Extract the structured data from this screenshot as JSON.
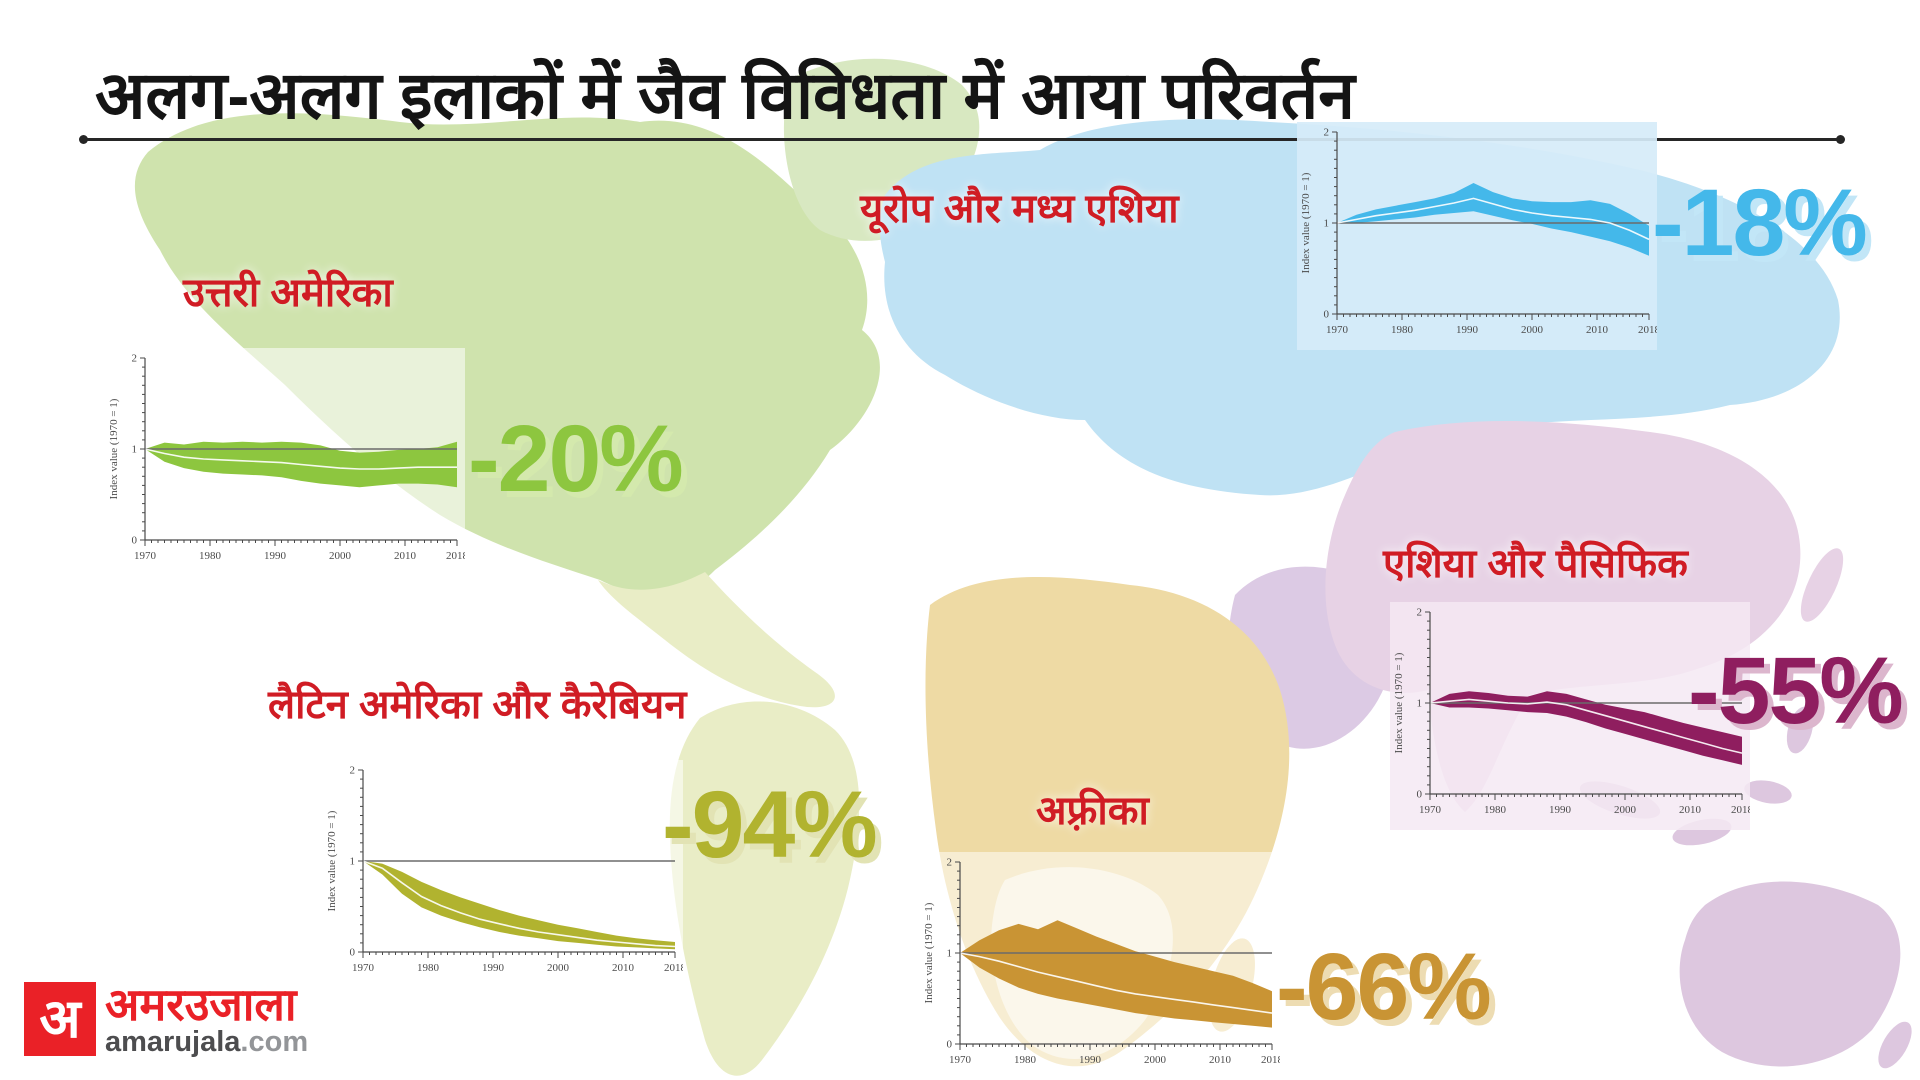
{
  "title": "अलग-अलग इलाकों में जैव विविधता में आया परिवर्तन",
  "colors": {
    "title": "#141414",
    "region_label": "#d01c24",
    "rule": "#262626",
    "brand_red": "#ea2127"
  },
  "map": {
    "ocean": "#ffffff",
    "north_america": "#cfe3ad",
    "greenland": "#d8e8c1",
    "latin_america": "#e9edc6",
    "europe_central_asia": "#bfe2f4",
    "africa": "#eedaa4",
    "africa_south": "#f7efd7",
    "middle_east": "#dccae4",
    "asia": "#e7d2e5",
    "australia_oceania": "#ddc7df"
  },
  "logo": {
    "monogram": "अ",
    "name_hindi": "अमरउजाला",
    "domain_bold": "amarujala",
    "domain_suffix": ".com"
  },
  "chart_data": [
    {
      "id": "north-america",
      "region_label": "उत्तरी अमेरिका",
      "percent_label": "-20%",
      "change_percent": -20,
      "type": "area",
      "ylabel": "Index value (1970 = 1)",
      "xlim": [
        1970,
        2018
      ],
      "ylim": [
        0,
        2
      ],
      "x_ticks": [
        1970,
        1980,
        1990,
        2000,
        2010,
        2018
      ],
      "y_ticks": [
        0,
        1,
        2
      ],
      "x": [
        1970,
        1973,
        1976,
        1979,
        1982,
        1985,
        1988,
        1991,
        1994,
        1997,
        2000,
        2003,
        2006,
        2009,
        2012,
        2015,
        2018
      ],
      "series": [
        {
          "name": "upper bound",
          "values": [
            1.0,
            1.07,
            1.05,
            1.08,
            1.07,
            1.08,
            1.07,
            1.08,
            1.07,
            1.04,
            0.98,
            0.96,
            0.97,
            0.99,
            1.0,
            1.02,
            1.08
          ]
        },
        {
          "name": "central estimate",
          "values": [
            1.0,
            0.95,
            0.91,
            0.89,
            0.88,
            0.87,
            0.86,
            0.85,
            0.83,
            0.81,
            0.79,
            0.78,
            0.78,
            0.79,
            0.8,
            0.8,
            0.8
          ]
        },
        {
          "name": "lower bound",
          "values": [
            1.0,
            0.86,
            0.79,
            0.75,
            0.73,
            0.72,
            0.71,
            0.69,
            0.65,
            0.62,
            0.6,
            0.58,
            0.6,
            0.62,
            0.62,
            0.61,
            0.58
          ]
        }
      ],
      "band_color": "#8dc63f",
      "accent_color": "#8dc63f",
      "shadow_color": "#d4e9ad",
      "panel_color": "rgba(255,255,255,0.55)"
    },
    {
      "id": "europe-central-asia",
      "region_label": "यूरोप और मध्य एशिया",
      "percent_label": "-18%",
      "change_percent": -18,
      "type": "area",
      "ylabel": "Index value (1970 = 1)",
      "xlim": [
        1970,
        2018
      ],
      "ylim": [
        0,
        2
      ],
      "x_ticks": [
        1970,
        1980,
        1990,
        2000,
        2010,
        2018
      ],
      "y_ticks": [
        0,
        1,
        2
      ],
      "x": [
        1970,
        1973,
        1976,
        1979,
        1982,
        1985,
        1988,
        1991,
        1994,
        1997,
        2000,
        2003,
        2006,
        2009,
        2012,
        2015,
        2018
      ],
      "series": [
        {
          "name": "upper bound",
          "values": [
            1.0,
            1.09,
            1.15,
            1.19,
            1.23,
            1.27,
            1.33,
            1.44,
            1.34,
            1.27,
            1.24,
            1.23,
            1.23,
            1.25,
            1.21,
            1.1,
            0.97
          ]
        },
        {
          "name": "central estimate",
          "values": [
            1.0,
            1.04,
            1.08,
            1.11,
            1.14,
            1.18,
            1.22,
            1.27,
            1.21,
            1.15,
            1.11,
            1.08,
            1.06,
            1.04,
            1.0,
            0.92,
            0.82
          ]
        },
        {
          "name": "lower bound",
          "values": [
            1.0,
            1.0,
            1.02,
            1.04,
            1.06,
            1.09,
            1.11,
            1.13,
            1.08,
            1.03,
            0.99,
            0.94,
            0.9,
            0.85,
            0.8,
            0.73,
            0.64
          ]
        }
      ],
      "band_color": "#44b8ea",
      "accent_color": "#44b8ea",
      "shadow_color": "#c2e6f7",
      "panel_color": "rgba(214,236,249,0.92)"
    },
    {
      "id": "latin-america-caribbean",
      "region_label": "लैटिन अमेरिका और कैरेबियन",
      "percent_label": "-94%",
      "change_percent": -94,
      "type": "area",
      "ylabel": "Index value (1970 = 1)",
      "xlim": [
        1970,
        2018
      ],
      "ylim": [
        0,
        2
      ],
      "x_ticks": [
        1970,
        1980,
        1990,
        2000,
        2010,
        2018
      ],
      "y_ticks": [
        0,
        1,
        2
      ],
      "x": [
        1970,
        1973,
        1976,
        1979,
        1982,
        1985,
        1988,
        1991,
        1994,
        1997,
        2000,
        2003,
        2006,
        2009,
        2012,
        2015,
        2018
      ],
      "series": [
        {
          "name": "upper bound",
          "values": [
            1.0,
            0.97,
            0.88,
            0.77,
            0.68,
            0.6,
            0.53,
            0.46,
            0.4,
            0.35,
            0.3,
            0.26,
            0.22,
            0.18,
            0.15,
            0.13,
            0.11
          ]
        },
        {
          "name": "central estimate",
          "values": [
            1.0,
            0.92,
            0.76,
            0.61,
            0.51,
            0.43,
            0.36,
            0.31,
            0.26,
            0.22,
            0.19,
            0.16,
            0.13,
            0.11,
            0.09,
            0.07,
            0.06
          ]
        },
        {
          "name": "lower bound",
          "values": [
            1.0,
            0.85,
            0.64,
            0.49,
            0.4,
            0.33,
            0.27,
            0.22,
            0.18,
            0.15,
            0.12,
            0.1,
            0.08,
            0.06,
            0.05,
            0.04,
            0.03
          ]
        }
      ],
      "band_color": "#b1b32f",
      "accent_color": "#b1b32f",
      "shadow_color": "#e2e3b4",
      "panel_color": "rgba(255,255,255,0.55)"
    },
    {
      "id": "africa",
      "region_label": "अफ़्रीका",
      "percent_label": "-66%",
      "change_percent": -66,
      "type": "area",
      "ylabel": "Index value (1970 = 1)",
      "xlim": [
        1970,
        2018
      ],
      "ylim": [
        0,
        2
      ],
      "x_ticks": [
        1970,
        1980,
        1990,
        2000,
        2010,
        2018
      ],
      "y_ticks": [
        0,
        1,
        2
      ],
      "x": [
        1970,
        1973,
        1976,
        1979,
        1982,
        1985,
        1988,
        1991,
        1994,
        1997,
        2000,
        2003,
        2006,
        2009,
        2012,
        2015,
        2018
      ],
      "series": [
        {
          "name": "upper bound",
          "values": [
            1.0,
            1.14,
            1.25,
            1.32,
            1.26,
            1.36,
            1.27,
            1.18,
            1.1,
            1.02,
            0.96,
            0.9,
            0.85,
            0.8,
            0.75,
            0.67,
            0.58
          ]
        },
        {
          "name": "central estimate",
          "values": [
            1.0,
            0.96,
            0.91,
            0.85,
            0.79,
            0.74,
            0.69,
            0.64,
            0.59,
            0.55,
            0.52,
            0.49,
            0.46,
            0.43,
            0.4,
            0.37,
            0.34
          ]
        },
        {
          "name": "lower bound",
          "values": [
            1.0,
            0.84,
            0.72,
            0.62,
            0.55,
            0.5,
            0.46,
            0.42,
            0.38,
            0.34,
            0.31,
            0.28,
            0.26,
            0.24,
            0.22,
            0.2,
            0.18
          ]
        }
      ],
      "band_color": "#c99434",
      "accent_color": "#c99434",
      "shadow_color": "#eddcb2",
      "panel_color": "rgba(255,255,255,0.5)"
    },
    {
      "id": "asia-pacific",
      "region_label": "एशिया और पैसिफिक",
      "percent_label": "-55%",
      "change_percent": -55,
      "type": "area",
      "ylabel": "Index value (1970 = 1)",
      "xlim": [
        1970,
        2018
      ],
      "ylim": [
        0,
        2
      ],
      "x_ticks": [
        1970,
        1980,
        1990,
        2000,
        2010,
        2018
      ],
      "y_ticks": [
        0,
        1,
        2
      ],
      "x": [
        1970,
        1973,
        1976,
        1979,
        1982,
        1985,
        1988,
        1991,
        1994,
        1997,
        2000,
        2003,
        2006,
        2009,
        2012,
        2015,
        2018
      ],
      "series": [
        {
          "name": "upper bound",
          "values": [
            1.0,
            1.1,
            1.13,
            1.11,
            1.08,
            1.07,
            1.13,
            1.1,
            1.04,
            0.98,
            0.94,
            0.9,
            0.84,
            0.78,
            0.73,
            0.68,
            0.63
          ]
        },
        {
          "name": "central estimate",
          "values": [
            1.0,
            1.02,
            1.04,
            1.02,
            1.0,
            0.99,
            1.01,
            0.98,
            0.92,
            0.86,
            0.8,
            0.74,
            0.68,
            0.62,
            0.56,
            0.5,
            0.45
          ]
        },
        {
          "name": "lower bound",
          "values": [
            1.0,
            0.95,
            0.95,
            0.94,
            0.92,
            0.9,
            0.89,
            0.85,
            0.79,
            0.72,
            0.66,
            0.6,
            0.54,
            0.48,
            0.42,
            0.37,
            0.32
          ]
        }
      ],
      "band_color": "#8f1e5f",
      "accent_color": "#8f1e5f",
      "shadow_color": "#dcb6cd",
      "panel_color": "rgba(244,233,243,0.85)"
    }
  ]
}
